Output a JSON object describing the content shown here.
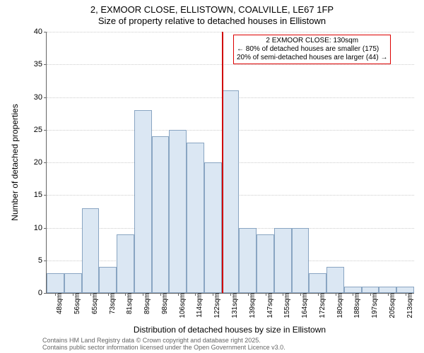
{
  "title_line1": "2, EXMOOR CLOSE, ELLISTOWN, COALVILLE, LE67 1FP",
  "title_line2": "Size of property relative to detached houses in Ellistown",
  "ylabel": "Number of detached properties",
  "xlabel": "Distribution of detached houses by size in Ellistown",
  "footer_line1": "Contains HM Land Registry data © Crown copyright and database right 2025.",
  "footer_line2": "Contains public sector information licensed under the Open Government Licence v3.0.",
  "chart": {
    "type": "histogram",
    "background_color": "#ffffff",
    "bar_fill": "#dbe7f3",
    "bar_border": "#89a5c2",
    "grid_color": "#cccccc",
    "axis_color": "#666666",
    "ref_line_color": "#d00000",
    "y_max": 40,
    "y_tick_step": 5,
    "y_ticks": [
      0,
      5,
      10,
      15,
      20,
      25,
      30,
      35,
      40
    ],
    "x_labels": [
      "48sqm",
      "56sqm",
      "65sqm",
      "73sqm",
      "81sqm",
      "89sqm",
      "98sqm",
      "106sqm",
      "114sqm",
      "122sqm",
      "131sqm",
      "139sqm",
      "147sqm",
      "155sqm",
      "164sqm",
      "172sqm",
      "180sqm",
      "188sqm",
      "197sqm",
      "205sqm",
      "213sqm"
    ],
    "values": [
      3,
      3,
      13,
      4,
      9,
      28,
      24,
      25,
      23,
      20,
      31,
      10,
      9,
      10,
      10,
      3,
      4,
      1,
      1,
      1,
      1
    ],
    "ref_line_x_index": 10,
    "annotation": {
      "line1": "2 EXMOOR CLOSE: 130sqm",
      "line2": "← 80% of detached houses are smaller (175)",
      "line3": "20% of semi-detached houses are larger (44) →"
    },
    "title_fontsize": 13,
    "label_fontsize": 12,
    "tick_fontsize": 11,
    "annotation_fontsize": 10
  }
}
